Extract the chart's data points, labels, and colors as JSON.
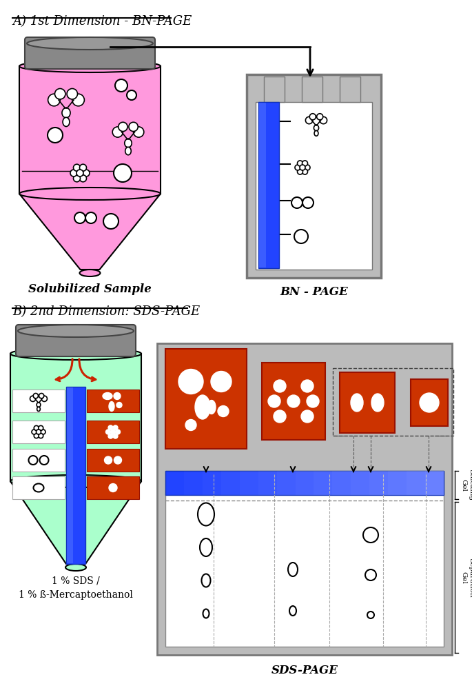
{
  "title_a": "A) 1st Dimension - BN-PAGE",
  "title_b": "B) 2nd Dimension: SDS-PAGE",
  "label_solubilized": "Solubilized Sample",
  "label_bn_page": "BN - PAGE",
  "label_sds": "1 % SDS /\n1 % ß-Mercaptoethanol",
  "label_sds_page": "SDS-PAGE",
  "label_stacking": "Stacking\nGel",
  "label_separation": "Separation\nGel",
  "bg_color": "#ffffff",
  "pink_color": "#ff99dd",
  "green_color": "#aaffcc",
  "gray_color": "#aaaaaa",
  "orange_red": "#cc3300",
  "blue_strip": "#2244ff",
  "cap_color": "#888888",
  "cap_dark": "#444444",
  "frame_color": "#bbbbbb",
  "frame_dark": "#888888"
}
